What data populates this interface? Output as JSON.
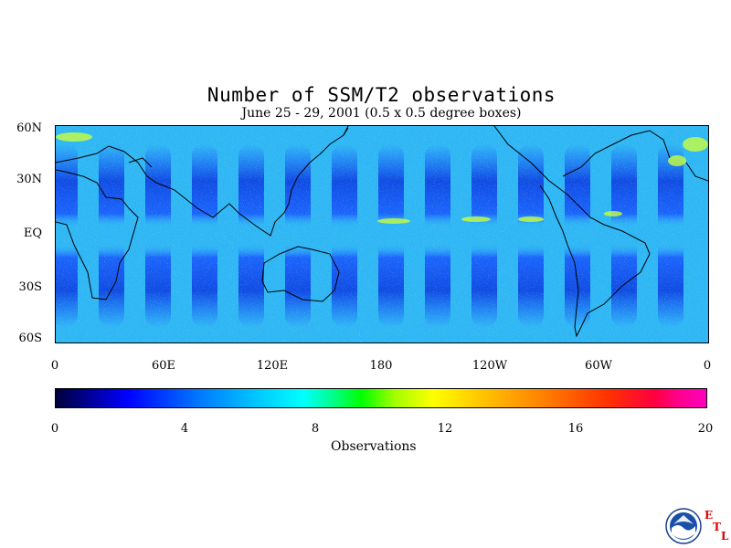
{
  "title": "Number of SSM/T2 observations",
  "subtitle": "June 25 - 29, 2001 (0.5 x 0.5 degree boxes)",
  "map": {
    "lat_labels": [
      "60N",
      "30N",
      "EQ",
      "30S",
      "60S"
    ],
    "lon_labels": [
      "0",
      "60E",
      "120E",
      "180",
      "120W",
      "60W",
      "0"
    ]
  },
  "colorbar": {
    "ticks": [
      "0",
      "4",
      "8",
      "12",
      "16",
      "20"
    ],
    "label": "Observations",
    "range": [
      0,
      20
    ],
    "colors": [
      "#00003c",
      "#0000ff",
      "#00c8ff",
      "#00ffff",
      "#00ff00",
      "#ffff00",
      "#ff8000",
      "#ff0000",
      "#ff00c0"
    ]
  },
  "logo": {
    "icon": "noaa-logo-icon",
    "letters": [
      "E",
      "T",
      "L"
    ]
  }
}
